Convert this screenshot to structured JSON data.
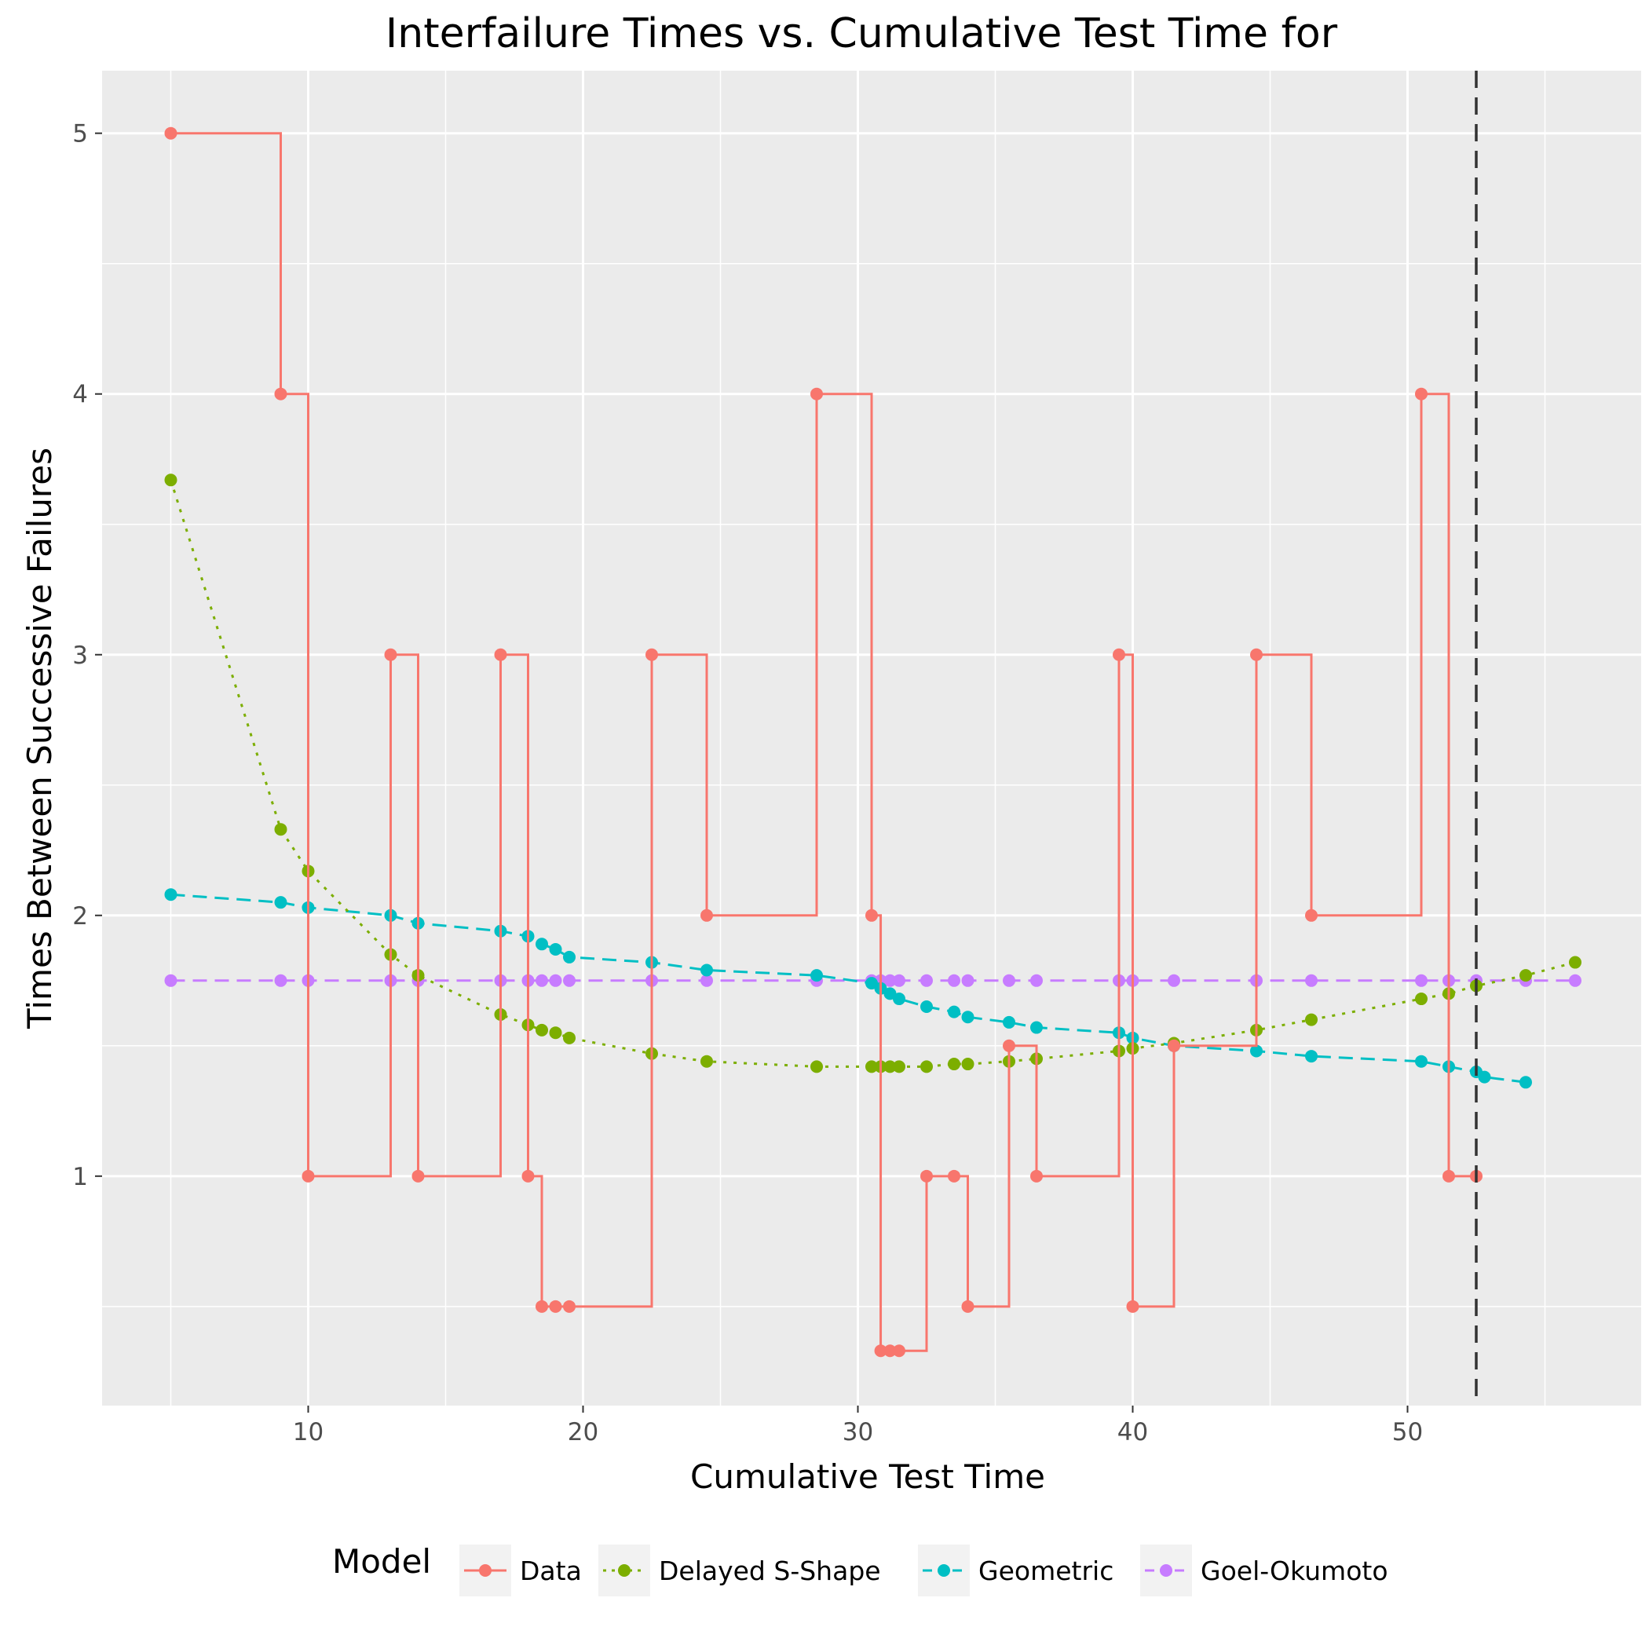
{
  "chart_data": {
    "type": "line",
    "title": "Interfailure Times vs. Cumulative Test Time for",
    "xlabel": "Cumulative Test Time",
    "ylabel": "Times Between Successive Failures",
    "xlim": [
      2.5,
      58.5
    ],
    "ylim": [
      0.12,
      5.24
    ],
    "x_ticks": [
      10,
      20,
      30,
      40,
      50
    ],
    "y_ticks": [
      1,
      2,
      3,
      4,
      5
    ],
    "grid": true,
    "legend_title": "Model",
    "legend_position": "bottom",
    "reference_line": {
      "axis": "x",
      "value": 52.5,
      "style": "dashed",
      "color": "#333333"
    },
    "series": [
      {
        "name": "Data",
        "color": "#F8766D",
        "line_style": "step",
        "x": [
          5,
          9,
          10,
          13,
          14,
          17,
          18,
          18.5,
          19,
          19.5,
          22.5,
          24.5,
          28.5,
          30.5,
          30.83,
          31.17,
          31.5,
          32.5,
          33.5,
          34,
          35.5,
          36.5,
          39.5,
          40,
          41.5,
          44.5,
          46.5,
          50.5,
          51.5,
          52.5
        ],
        "y": [
          5,
          4,
          1,
          3,
          1,
          3,
          1,
          0.5,
          0.5,
          0.5,
          3,
          2,
          4,
          2,
          0.33,
          0.33,
          0.33,
          1,
          1,
          0.5,
          1.5,
          1,
          3,
          0.5,
          1.5,
          3,
          2,
          4,
          1,
          1
        ]
      },
      {
        "name": "Delayed S-Shape",
        "color": "#7CAE00",
        "line_style": "dotted",
        "x": [
          5,
          9,
          10,
          13,
          14,
          17,
          18,
          18.5,
          19,
          19.5,
          22.5,
          24.5,
          28.5,
          30.5,
          30.83,
          31.17,
          31.5,
          32.5,
          33.5,
          34,
          35.5,
          36.5,
          39.5,
          40,
          41.5,
          44.5,
          46.5,
          50.5,
          51.5,
          52.5,
          54.3,
          56.1
        ],
        "y": [
          3.67,
          2.33,
          2.17,
          1.85,
          1.77,
          1.62,
          1.58,
          1.56,
          1.55,
          1.53,
          1.47,
          1.44,
          1.42,
          1.42,
          1.42,
          1.42,
          1.42,
          1.42,
          1.43,
          1.43,
          1.44,
          1.45,
          1.48,
          1.49,
          1.51,
          1.56,
          1.6,
          1.68,
          1.7,
          1.73,
          1.77,
          1.82
        ]
      },
      {
        "name": "Geometric",
        "color": "#00BFC4",
        "line_style": "dashed",
        "x": [
          5,
          9,
          10,
          13,
          14,
          17,
          18,
          18.5,
          19,
          19.5,
          22.5,
          24.5,
          28.5,
          30.5,
          30.83,
          31.17,
          31.5,
          32.5,
          33.5,
          34,
          35.5,
          36.5,
          39.5,
          40,
          41.5,
          44.5,
          46.5,
          50.5,
          51.5,
          52.5,
          52.8,
          54.3
        ],
        "y": [
          2.08,
          2.05,
          2.03,
          2.0,
          1.97,
          1.94,
          1.92,
          1.89,
          1.87,
          1.84,
          1.82,
          1.79,
          1.77,
          1.74,
          1.72,
          1.7,
          1.68,
          1.65,
          1.63,
          1.61,
          1.59,
          1.57,
          1.55,
          1.53,
          1.5,
          1.48,
          1.46,
          1.44,
          1.42,
          1.4,
          1.38,
          1.36
        ]
      },
      {
        "name": "Goel-Okumoto",
        "color": "#C77CFF",
        "line_style": "dashed",
        "x": [
          5,
          9,
          10,
          13,
          14,
          17,
          18,
          18.5,
          19,
          19.5,
          22.5,
          24.5,
          28.5,
          30.5,
          30.83,
          31.17,
          31.5,
          32.5,
          33.5,
          34,
          35.5,
          36.5,
          39.5,
          40,
          41.5,
          44.5,
          46.5,
          50.5,
          51.5,
          52.5,
          54.3,
          56.1
        ],
        "y": [
          1.75,
          1.75,
          1.75,
          1.75,
          1.75,
          1.75,
          1.75,
          1.75,
          1.75,
          1.75,
          1.75,
          1.75,
          1.75,
          1.75,
          1.75,
          1.75,
          1.75,
          1.75,
          1.75,
          1.75,
          1.75,
          1.75,
          1.75,
          1.75,
          1.75,
          1.75,
          1.75,
          1.75,
          1.75,
          1.75,
          1.75,
          1.75
        ]
      }
    ]
  }
}
